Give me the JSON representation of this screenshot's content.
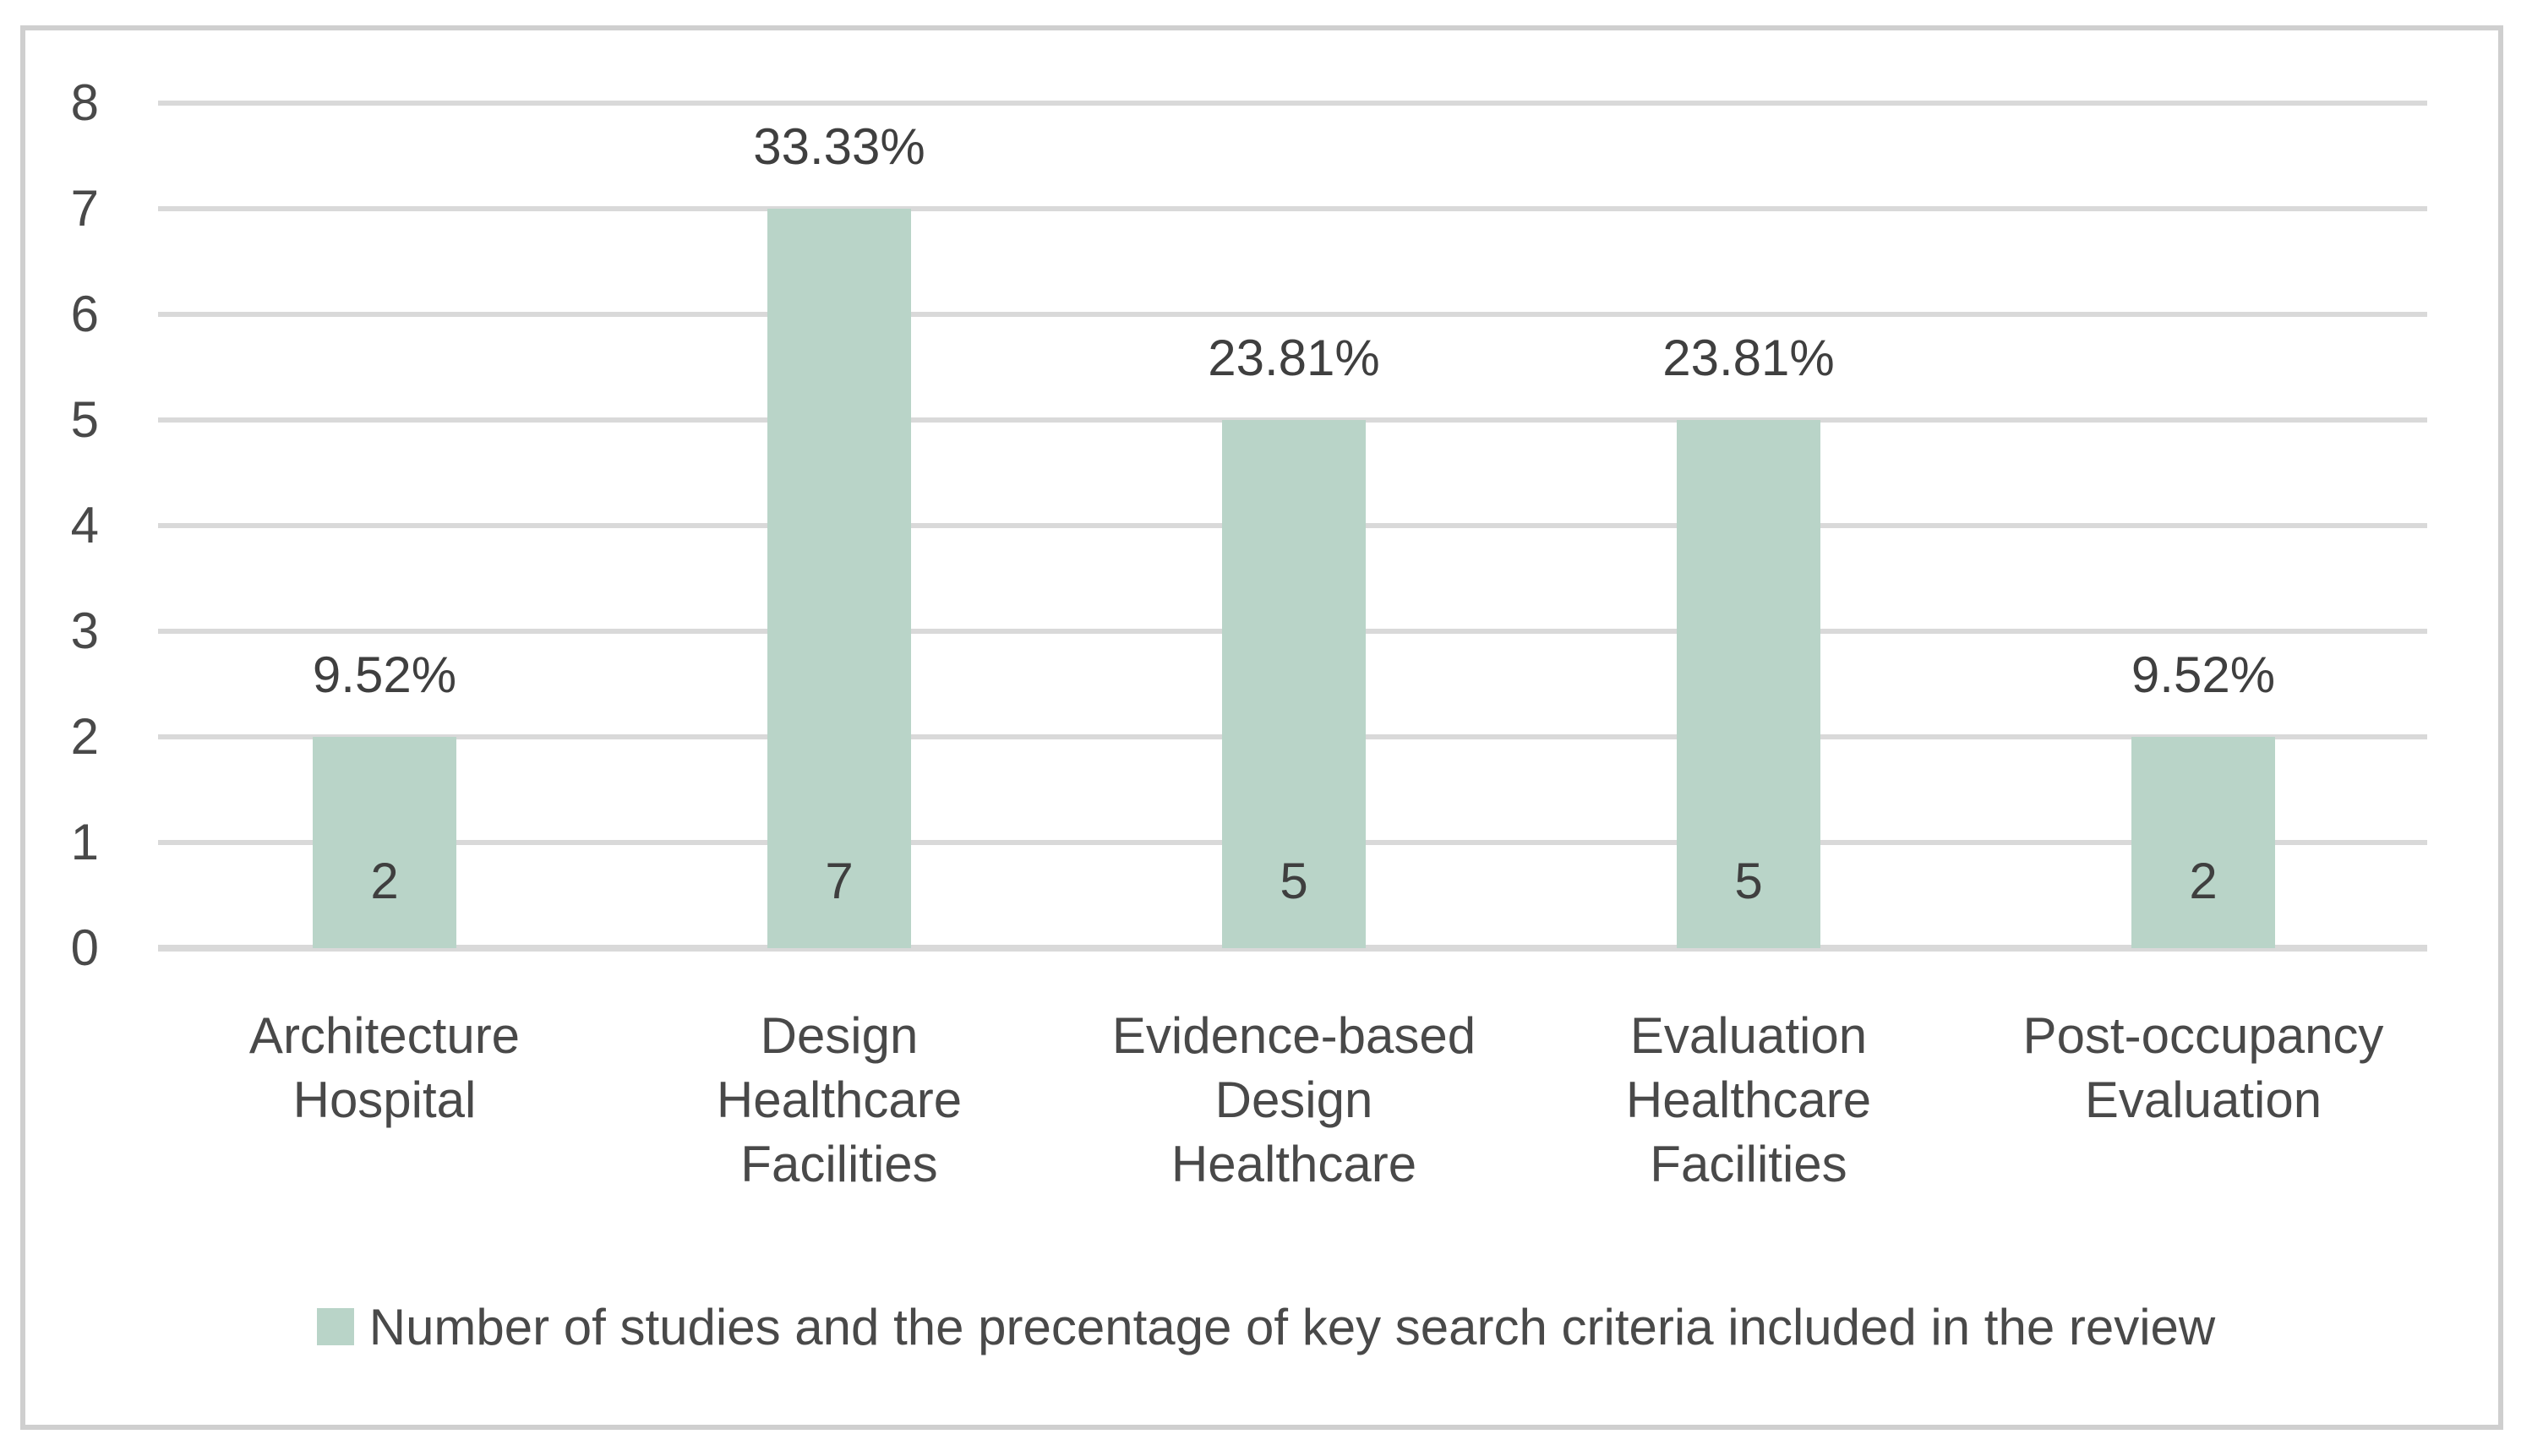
{
  "legend": {
    "label": "Number of studies and the precentage of key search criteria included in the review"
  },
  "colors": {
    "bar": "#b9d4c8",
    "grid": "#d9d9d9",
    "axis_line": "#d9d9d9",
    "frame": "#cfcfcf",
    "text": "#494949",
    "label_text": "#3f3f3f"
  },
  "chart_data": {
    "type": "bar",
    "title": "",
    "xlabel": "",
    "ylabel": "",
    "categories": [
      "Architecture Hospital",
      "Design Healthcare Facilities",
      "Evidence-based Design Healthcare",
      "Evaluation Healthcare Facilities",
      "Post-occupancy Evaluation"
    ],
    "category_lines": [
      [
        "Architecture",
        "Hospital"
      ],
      [
        "Design",
        "Healthcare",
        "Facilities"
      ],
      [
        "Evidence-based",
        "Design",
        "Healthcare"
      ],
      [
        "Evaluation",
        "Healthcare",
        "Facilities"
      ],
      [
        "Post-occupancy",
        "Evaluation"
      ]
    ],
    "values": [
      2,
      7,
      5,
      5,
      2
    ],
    "bar_value_labels": [
      "2",
      "7",
      "5",
      "5",
      "2"
    ],
    "percentage_labels": [
      "9.52%",
      "33.33%",
      "23.81%",
      "23.81%",
      "9.52%"
    ],
    "y_ticks": [
      0,
      1,
      2,
      3,
      4,
      5,
      6,
      7,
      8
    ],
    "ylim": [
      0,
      8
    ],
    "grid": true,
    "legend_position": "bottom",
    "legend_entries": [
      "Number of studies and the precentage of key search criteria included in the review"
    ]
  }
}
